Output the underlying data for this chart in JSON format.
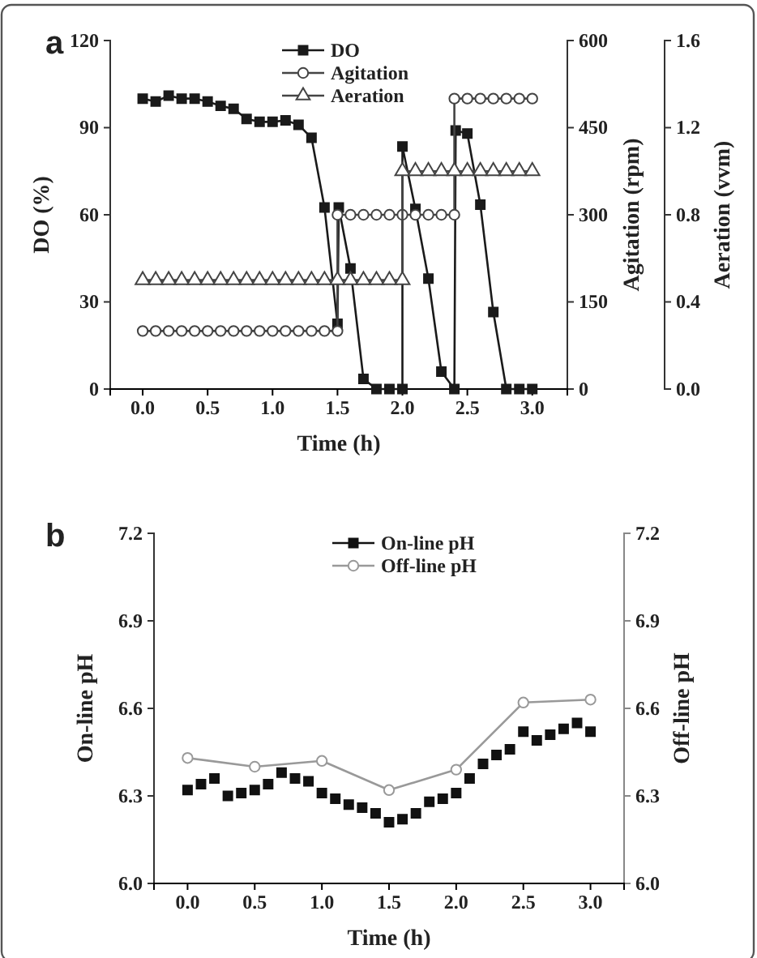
{
  "chart_data": [
    {
      "type": "line",
      "xlabel": "Time (h)",
      "ylabel": "DO (%)",
      "y2label": "Agitation (rpm)",
      "y3label": "Aeration (vvm)",
      "xlim": [
        -0.25,
        3.27
      ],
      "xticks": [
        {
          "value": 0,
          "label": "0.0"
        },
        0.5,
        {
          "value": 1,
          "label": "1.0"
        },
        1.5,
        {
          "value": 2,
          "label": "2.0"
        },
        2.5,
        {
          "value": 3,
          "label": "3.0"
        }
      ],
      "ylim": [
        0,
        120
      ],
      "yticks": [
        0,
        30,
        60,
        90,
        120
      ],
      "y2lim": [
        0,
        600
      ],
      "y2ticks": [
        0,
        150,
        300,
        450,
        600
      ],
      "y3lim": [
        0,
        1.6
      ],
      "y3ticks": [
        {
          "value": 0,
          "label": "0.0"
        },
        0.4,
        0.8,
        1.2,
        1.6
      ],
      "legend": "top",
      "annotations": [
        "a"
      ],
      "series": [
        {
          "name": "DO",
          "color": "#1a1a1a",
          "marker": "square",
          "x": [
            0,
            0.1,
            0.2,
            0.3,
            0.4,
            0.5,
            0.6,
            0.7,
            0.8,
            0.9,
            1.0,
            1.1,
            1.2,
            1.3,
            1.4,
            1.5,
            1.51,
            1.6,
            1.7,
            1.8,
            1.9,
            2.0,
            2.0,
            2.1,
            2.2,
            2.3,
            2.4,
            2.41,
            2.5,
            2.6,
            2.7,
            2.8,
            2.9,
            3.0
          ],
          "values": [
            100,
            99,
            101,
            100,
            100,
            99,
            97.5,
            96.5,
            93,
            92,
            92,
            92.5,
            91,
            86.5,
            62.5,
            22.5,
            62.5,
            41.5,
            3.5,
            0,
            0,
            0,
            83.5,
            62,
            38,
            6,
            0,
            89,
            88,
            63.5,
            26.5,
            0,
            0,
            0
          ]
        },
        {
          "name": "Agitation",
          "color": "#444444",
          "marker": "circle",
          "axis": "y2",
          "x": [
            0,
            0.1,
            0.2,
            0.3,
            0.4,
            0.5,
            0.6,
            0.7,
            0.8,
            0.9,
            1.0,
            1.1,
            1.2,
            1.3,
            1.4,
            1.5,
            1.5,
            1.6,
            1.7,
            1.8,
            1.9,
            2.0,
            2.1,
            2.2,
            2.3,
            2.4,
            2.4,
            2.5,
            2.6,
            2.7,
            2.8,
            2.9,
            3.0
          ],
          "values": [
            100,
            100,
            100,
            100,
            100,
            100,
            100,
            100,
            100,
            100,
            100,
            100,
            100,
            100,
            100,
            100,
            300,
            300,
            300,
            300,
            300,
            300,
            300,
            300,
            300,
            300,
            500,
            500,
            500,
            500,
            500,
            500,
            500
          ]
        },
        {
          "name": "Aeration",
          "color": "#444444",
          "marker": "triangle",
          "axis": "y3",
          "x": [
            0,
            0.1,
            0.2,
            0.3,
            0.4,
            0.5,
            0.6,
            0.7,
            0.8,
            0.9,
            1.0,
            1.1,
            1.2,
            1.3,
            1.4,
            1.5,
            1.6,
            1.7,
            1.8,
            1.9,
            2.0,
            2.0,
            2.1,
            2.2,
            2.3,
            2.4,
            2.5,
            2.6,
            2.7,
            2.8,
            2.9,
            3.0
          ],
          "values": [
            0.5,
            0.5,
            0.5,
            0.5,
            0.5,
            0.5,
            0.5,
            0.5,
            0.5,
            0.5,
            0.5,
            0.5,
            0.5,
            0.5,
            0.5,
            0.5,
            0.5,
            0.5,
            0.5,
            0.5,
            0.5,
            1.0,
            1.0,
            1.0,
            1.0,
            1.0,
            1.0,
            1.0,
            1.0,
            1.0,
            1.0,
            1.0
          ]
        }
      ]
    },
    {
      "type": "line",
      "xlabel": "Time (h)",
      "ylabel": "On-line pH",
      "y2label": "Off-line pH",
      "xlim": [
        -0.25,
        3.25
      ],
      "xticks": [
        {
          "value": 0,
          "label": "0.0"
        },
        0.5,
        {
          "value": 1,
          "label": "1.0"
        },
        1.5,
        {
          "value": 2,
          "label": "2.0"
        },
        2.5,
        {
          "value": 3,
          "label": "3.0"
        }
      ],
      "ylim": [
        6.0,
        7.2
      ],
      "yticks": [
        {
          "value": 6,
          "label": "6.0"
        },
        6.3,
        6.6,
        6.9,
        7.2
      ],
      "y2lim": [
        6.0,
        7.2
      ],
      "y2ticks": [
        {
          "value": 6,
          "label": "6.0"
        },
        6.3,
        6.6,
        6.9,
        7.2
      ],
      "legend": "top",
      "annotations": [
        "b"
      ],
      "series": [
        {
          "name": "On-line pH",
          "type": "scatter",
          "color": "#111111",
          "marker": "square",
          "x": [
            0,
            0.1,
            0.2,
            0.3,
            0.4,
            0.5,
            0.6,
            0.7,
            0.8,
            0.9,
            1.0,
            1.1,
            1.2,
            1.3,
            1.4,
            1.5,
            1.6,
            1.7,
            1.8,
            1.9,
            2.0,
            2.1,
            2.2,
            2.3,
            2.4,
            2.5,
            2.6,
            2.7,
            2.8,
            2.9,
            3.0
          ],
          "values": [
            6.32,
            6.34,
            6.36,
            6.3,
            6.31,
            6.32,
            6.34,
            6.38,
            6.36,
            6.35,
            6.31,
            6.29,
            6.27,
            6.26,
            6.24,
            6.21,
            6.22,
            6.24,
            6.28,
            6.29,
            6.31,
            6.36,
            6.41,
            6.44,
            6.46,
            6.52,
            6.49,
            6.51,
            6.53,
            6.55,
            6.52
          ]
        },
        {
          "name": "Off-line pH",
          "color": "#999999",
          "marker": "circle",
          "axis": "y2",
          "x": [
            0,
            0.5,
            1.0,
            1.5,
            2.0,
            2.5,
            3.0
          ],
          "values": [
            6.43,
            6.4,
            6.42,
            6.32,
            6.39,
            6.62,
            6.63
          ]
        }
      ]
    }
  ]
}
